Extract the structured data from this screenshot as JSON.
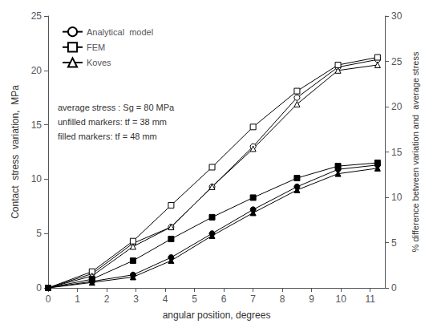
{
  "chart_data": {
    "type": "line",
    "xlabel": "angular position, degrees",
    "ylabel": "Contact  stress  variation,  MPa",
    "y2label": "% difference between variation and  average stress",
    "x": [
      0,
      1.5,
      2.9,
      4.2,
      5.6,
      7.0,
      8.5,
      9.9,
      11.25
    ],
    "xlim": [
      0,
      11.5
    ],
    "xticks": [
      0,
      1,
      2,
      3,
      4,
      5,
      6,
      7,
      8,
      9,
      10,
      11
    ],
    "ylim": [
      0,
      25
    ],
    "yticks": [
      0,
      5,
      10,
      15,
      20,
      25
    ],
    "y2lim": [
      0,
      30
    ],
    "y2ticks": [
      0,
      5,
      10,
      15,
      20,
      25,
      30
    ],
    "grid": false,
    "legend": "upper left",
    "annotations": [
      "average stress : Sg = 80 MPa",
      "unfilled markers: tf = 38 mm",
      "filled markers: tf = 48 mm"
    ],
    "series": [
      {
        "name": "Analytical  model",
        "color": "#000000",
        "marker": "open_circle",
        "values": [
          0,
          1.3,
          4.1,
          5.6,
          9.3,
          13.0,
          17.5,
          20.3,
          21.0
        ]
      },
      {
        "name": "FEM",
        "color": "#000000",
        "marker": "open_square",
        "values": [
          0,
          1.5,
          4.3,
          7.6,
          11.1,
          14.8,
          18.1,
          20.5,
          21.2
        ]
      },
      {
        "name": "Koves",
        "color": "#000000",
        "marker": "open_triangle",
        "values": [
          0,
          1.1,
          3.8,
          5.6,
          9.3,
          12.8,
          16.9,
          20.0,
          20.5
        ]
      },
      {
        "color": "#000000",
        "marker": "circle",
        "values": [
          0,
          0.6,
          1.2,
          2.8,
          5.0,
          7.2,
          9.3,
          10.9,
          11.3
        ]
      },
      {
        "color": "#000000",
        "marker": "square",
        "values": [
          0,
          0.8,
          2.5,
          4.5,
          6.5,
          8.3,
          10.1,
          11.2,
          11.5
        ]
      },
      {
        "color": "#000000",
        "marker": "triangle",
        "values": [
          0,
          0.5,
          1.0,
          2.5,
          4.8,
          6.9,
          9.0,
          10.5,
          11.0
        ]
      }
    ]
  }
}
